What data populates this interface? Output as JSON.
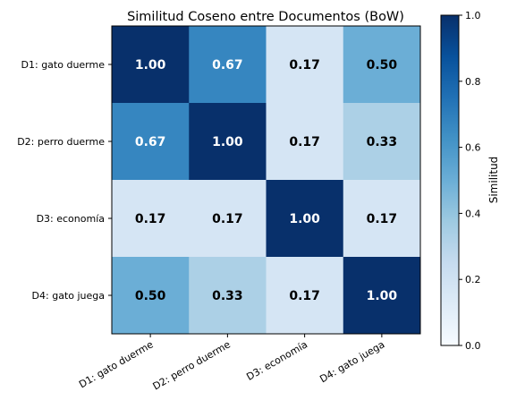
{
  "chart_data": {
    "type": "heatmap",
    "title": "Similitud Coseno entre Documentos (BoW)",
    "row_labels": [
      "D1: gato duerme",
      "D2: perro duerme",
      "D3: economía",
      "D4: gato juega"
    ],
    "col_labels": [
      "D1: gato duerme",
      "D2: perro duerme",
      "D3: economía",
      "D4: gato juega"
    ],
    "values": [
      [
        1.0,
        0.67,
        0.17,
        0.5
      ],
      [
        0.67,
        1.0,
        0.17,
        0.33
      ],
      [
        0.17,
        0.17,
        1.0,
        0.17
      ],
      [
        0.5,
        0.33,
        0.17,
        1.0
      ]
    ],
    "cell_labels": [
      [
        "1.00",
        "0.67",
        "0.17",
        "0.50"
      ],
      [
        "0.67",
        "1.00",
        "0.17",
        "0.33"
      ],
      [
        "0.17",
        "0.17",
        "1.00",
        "0.17"
      ],
      [
        "0.50",
        "0.33",
        "0.17",
        "1.00"
      ]
    ],
    "colorbar": {
      "label": "Similitud",
      "range": [
        0.0,
        1.0
      ],
      "ticks": [
        0.0,
        0.2,
        0.4,
        0.6,
        0.8,
        1.0
      ],
      "tick_labels": [
        "0.0",
        "0.2",
        "0.4",
        "0.6",
        "0.8",
        "1.0"
      ]
    },
    "colormap": "Blues",
    "colormap_stops": [
      "#f7fbff",
      "#deebf7",
      "#c6dbef",
      "#9ecae1",
      "#6baed6",
      "#4292c6",
      "#2171b5",
      "#08519c",
      "#08306b"
    ],
    "grid": false
  }
}
